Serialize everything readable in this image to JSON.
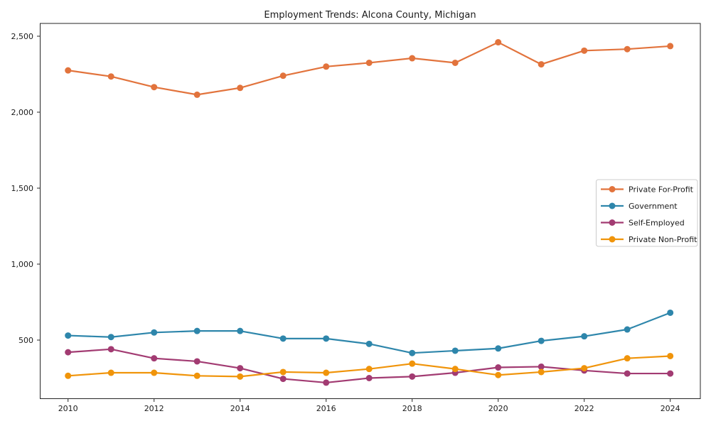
{
  "figure": {
    "background": "#ffffff",
    "frame_color": "#262626",
    "text_color": "#1a1a1a"
  },
  "chart_data": {
    "type": "line",
    "title": "Employment Trends: Alcona County, Michigan",
    "x": [
      2010,
      2011,
      2012,
      2013,
      2014,
      2015,
      2016,
      2017,
      2018,
      2019,
      2020,
      2021,
      2022,
      2023,
      2024
    ],
    "x_tick_labels": [
      "2010",
      "2012",
      "2014",
      "2016",
      "2018",
      "2020",
      "2022",
      "2024"
    ],
    "x_tick_years": [
      2010,
      2012,
      2014,
      2016,
      2018,
      2020,
      2022,
      2024
    ],
    "y_ticks": [
      {
        "value": 2500,
        "label": "2,500"
      },
      {
        "value": 2000,
        "label": "2,000"
      },
      {
        "value": 1500,
        "label": "1,500"
      },
      {
        "value": 1000,
        "label": "1,000"
      },
      {
        "value": 500,
        "label": "500"
      }
    ],
    "ylabel": "",
    "xlabel": "",
    "grid": false,
    "legend_position": "center right",
    "legend_border_color": "#cccccc",
    "series": [
      {
        "name": "Private For-Profit",
        "color": "#e2733c",
        "values": [
          2275,
          2235,
          2165,
          2115,
          2160,
          2240,
          2300,
          2325,
          2355,
          2325,
          2460,
          2315,
          2405,
          2415,
          2435
        ]
      },
      {
        "name": "Government",
        "color": "#2e86ab",
        "values": [
          530,
          520,
          550,
          560,
          560,
          510,
          510,
          475,
          415,
          430,
          445,
          495,
          525,
          570,
          680
        ]
      },
      {
        "name": "Self-Employed",
        "color": "#a23b72",
        "values": [
          420,
          440,
          380,
          360,
          315,
          245,
          220,
          250,
          260,
          285,
          320,
          325,
          300,
          280,
          280
        ]
      },
      {
        "name": "Private Non-Profit",
        "color": "#f0940a",
        "values": [
          265,
          285,
          285,
          265,
          260,
          290,
          285,
          310,
          345,
          310,
          270,
          290,
          315,
          380,
          395
        ]
      }
    ]
  }
}
